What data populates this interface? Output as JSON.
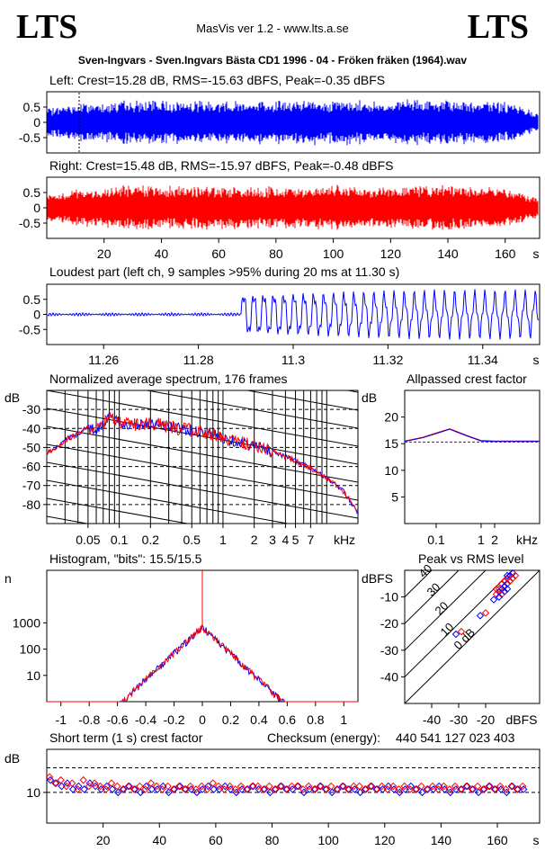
{
  "header": {
    "logo_left": "LTS",
    "logo_right": "LTS",
    "version": "MasVis ver 1.2 - www.lts.a.se",
    "filename": "Sven-Ingvars - Sven.Ingvars Bästa CD1 1996 - 04 - Fröken fräken (1964).wav"
  },
  "colors": {
    "left": "#0000ff",
    "right": "#ff0000",
    "purple": "#800080"
  },
  "chart_data": [
    {
      "id": "left",
      "type": "line",
      "title": "Left: Crest=15.28 dB, RMS=-15.63 dBFS, Peak=-0.35 dBFS",
      "y_ticks": [
        "0.5",
        "0",
        "-0.5"
      ],
      "ylim": [
        -1,
        1
      ],
      "duration_s": 172,
      "marker_s": 11.3,
      "envelope": [
        0.45,
        0.6,
        0.65,
        0.7,
        0.72,
        0.72,
        0.72,
        0.7,
        0.72,
        0.72,
        0.72,
        0.72,
        0.72,
        0.7,
        0.72,
        0.72,
        0.72,
        0.72,
        0.72,
        0.6,
        0.3
      ]
    },
    {
      "id": "right",
      "type": "line",
      "title": "Right: Crest=15.48 dB, RMS=-15.97 dBFS, Peak=-0.48 dBFS",
      "y_ticks": [
        "0.5",
        "0",
        "-0.5"
      ],
      "ylim": [
        -1,
        1
      ],
      "x_ticks": [
        "20",
        "40",
        "60",
        "80",
        "100",
        "120",
        "140",
        "160"
      ],
      "x_unit": "s",
      "duration_s": 172,
      "envelope": [
        0.45,
        0.6,
        0.65,
        0.7,
        0.72,
        0.72,
        0.72,
        0.7,
        0.72,
        0.72,
        0.72,
        0.72,
        0.72,
        0.7,
        0.72,
        0.72,
        0.72,
        0.72,
        0.72,
        0.6,
        0.3
      ]
    },
    {
      "id": "loudest",
      "type": "line",
      "title": "Loudest part (left  ch, 9 samples >95% during 20 ms at 11.30 s)",
      "y_ticks": [
        "0.5",
        "0",
        "-0.5"
      ],
      "x_ticks": [
        "11.26",
        "11.28",
        "11.3",
        "11.32",
        "11.34"
      ],
      "x_unit": "s",
      "xlim": [
        11.248,
        11.352
      ],
      "ylim": [
        -1,
        1
      ]
    },
    {
      "id": "spectrum",
      "type": "line",
      "title": "Normalized average spectrum, 176 frames",
      "ylabel": "dB",
      "y_ticks": [
        "-30",
        "-40",
        "-50",
        "-60",
        "-70",
        "-80"
      ],
      "x_ticks": [
        "0.05",
        "0.1",
        "0.2",
        "0.5",
        "1",
        "2",
        "3",
        "4",
        "5",
        "7"
      ],
      "x_unit": "kHz",
      "xlim": [
        0.02,
        20
      ],
      "ylim": [
        -90,
        -20
      ],
      "points": [
        [
          0.02,
          -53
        ],
        [
          0.025,
          -50
        ],
        [
          0.03,
          -46
        ],
        [
          0.04,
          -43
        ],
        [
          0.05,
          -39
        ],
        [
          0.06,
          -41
        ],
        [
          0.08,
          -34
        ],
        [
          0.1,
          -37
        ],
        [
          0.15,
          -38
        ],
        [
          0.2,
          -37
        ],
        [
          0.3,
          -39
        ],
        [
          0.5,
          -41
        ],
        [
          0.8,
          -43
        ],
        [
          1,
          -45
        ],
        [
          2,
          -49
        ],
        [
          3,
          -52
        ],
        [
          5,
          -57
        ],
        [
          7,
          -61
        ],
        [
          10,
          -66
        ],
        [
          14,
          -72
        ],
        [
          20,
          -84
        ]
      ]
    },
    {
      "id": "allpass",
      "type": "line",
      "title": "Allpassed crest factor",
      "ylabel": "dB",
      "y_ticks": [
        "20",
        "15",
        "10",
        "5"
      ],
      "x_ticks": [
        "0.1",
        "1",
        "2"
      ],
      "x_unit": "kHz",
      "xlim": [
        0.02,
        20
      ],
      "ylim": [
        0,
        25
      ],
      "baseline": 15.3,
      "points": [
        [
          0.02,
          15.5
        ],
        [
          0.05,
          16.2
        ],
        [
          0.1,
          17.0
        ],
        [
          0.2,
          17.8
        ],
        [
          0.5,
          16.5
        ],
        [
          1,
          15.6
        ],
        [
          2,
          15.5
        ],
        [
          5,
          15.5
        ],
        [
          20,
          15.5
        ]
      ]
    },
    {
      "id": "histogram",
      "type": "line",
      "title": "Histogram, \"bits\": 15.5/15.5",
      "ylabel": "n",
      "y_ticks": [
        "1000",
        "100",
        "10"
      ],
      "x_ticks": [
        "-1",
        "-0.8",
        "-0.6",
        "-0.4",
        "-0.2",
        "0",
        "0.2",
        "0.4",
        "0.6",
        "0.8",
        "1"
      ],
      "xlim": [
        -1.1,
        1.1
      ],
      "ylim": [
        1,
        100000
      ]
    },
    {
      "id": "peakrms",
      "type": "scatter",
      "title": "Peak vs RMS level",
      "ylabel": "dBFS",
      "y_ticks": [
        "-10",
        "-20",
        "-30",
        "-40"
      ],
      "x_ticks": [
        "-40",
        "-30",
        "-20"
      ],
      "x_unit": "dBFS",
      "diag_labels": [
        "40",
        "30",
        "20",
        "10",
        "0 dB"
      ],
      "xlim": [
        -50,
        0
      ],
      "ylim": [
        -50,
        0
      ],
      "points": [
        [
          -31,
          -24
        ],
        [
          -29,
          -23
        ],
        [
          -22,
          -17
        ],
        [
          -20,
          -16
        ],
        [
          -17,
          -11
        ],
        [
          -16,
          -9
        ],
        [
          -15,
          -8
        ],
        [
          -15,
          -7
        ],
        [
          -14,
          -7
        ],
        [
          -14,
          -5
        ],
        [
          -13,
          -6
        ],
        [
          -13,
          -4
        ],
        [
          -12,
          -5
        ],
        [
          -12,
          -3
        ],
        [
          -12,
          -2
        ],
        [
          -11,
          -4
        ],
        [
          -11,
          -2
        ],
        [
          -10,
          -3
        ],
        [
          -10,
          -1
        ],
        [
          -9,
          -2
        ],
        [
          -13,
          -8
        ],
        [
          -14,
          -9
        ],
        [
          -12,
          -7
        ],
        [
          -16,
          -7
        ],
        [
          -15,
          -10
        ]
      ]
    },
    {
      "id": "shortcrest",
      "type": "scatter",
      "title": "Short term (1 s) crest factor",
      "checksum_label": "Checksum (energy):",
      "checksum_value": "440 541 127 023 403",
      "ylabel": "dB",
      "y_ticks": [
        "10"
      ],
      "x_ticks": [
        "20",
        "40",
        "60",
        "80",
        "100",
        "120",
        "140",
        "160"
      ],
      "x_unit": "s",
      "xlim": [
        0,
        175
      ],
      "ylim": [
        0,
        24
      ],
      "left": [
        14,
        13,
        12,
        13,
        11,
        12,
        11,
        13,
        12,
        11,
        12,
        11,
        10,
        11,
        12,
        11,
        10,
        12,
        11,
        11,
        12,
        10,
        11,
        12,
        11,
        11,
        10,
        11,
        12,
        11,
        11,
        12,
        11,
        10,
        11,
        11,
        12,
        11,
        11,
        10,
        11,
        12,
        11,
        11,
        12,
        10,
        11,
        11,
        12,
        11,
        10,
        11,
        12,
        11,
        11,
        10,
        11,
        12,
        11,
        11,
        12,
        11,
        10,
        11,
        12,
        11,
        10,
        11,
        11,
        12,
        11,
        10,
        11,
        11,
        12,
        11,
        10,
        11,
        12,
        11,
        11,
        10,
        12,
        11,
        11
      ],
      "right": [
        15,
        13,
        14,
        12,
        13,
        11,
        14,
        12,
        13,
        12,
        11,
        13,
        12,
        11,
        12,
        11,
        12,
        11,
        13,
        12,
        11,
        12,
        11,
        12,
        11,
        12,
        11,
        12,
        11,
        13,
        12,
        11,
        12,
        11,
        12,
        11,
        12,
        12,
        11,
        12,
        11,
        12,
        11,
        12,
        12,
        11,
        12,
        11,
        12,
        11,
        12,
        11,
        12,
        11,
        12,
        12,
        11,
        12,
        11,
        12,
        11,
        12,
        11,
        12,
        11,
        11,
        12,
        11,
        12,
        11,
        12,
        11,
        12,
        11,
        12,
        11,
        12,
        11,
        12,
        11,
        12,
        11,
        12,
        11,
        12
      ]
    }
  ]
}
